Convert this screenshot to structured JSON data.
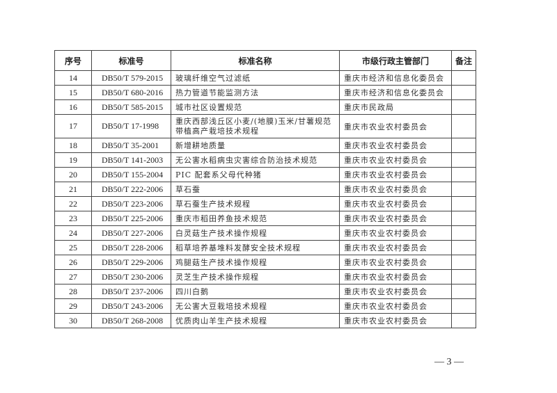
{
  "table": {
    "headers": [
      "序号",
      "标准号",
      "标准名称",
      "市级行政主管部门",
      "备注"
    ],
    "rows": [
      {
        "no": "14",
        "code": "DB50/T 579-2015",
        "name": "玻璃纤维空气过滤纸",
        "dept": "重庆市经济和信息化委员会",
        "note": ""
      },
      {
        "no": "15",
        "code": "DB50/T 680-2016",
        "name": "热力管道节能监测方法",
        "dept": "重庆市经济和信息化委员会",
        "note": ""
      },
      {
        "no": "16",
        "code": "DB50/T 585-2015",
        "name": "城市社区设置规范",
        "dept": "重庆市民政局",
        "note": ""
      },
      {
        "no": "17",
        "code": "DB50/T 17-1998",
        "name": "重庆西部浅丘区小麦/(地膜)玉米/甘薯规范带植高产栽培技术规程",
        "dept": "重庆市农业农村委员会",
        "note": ""
      },
      {
        "no": "18",
        "code": "DB50/T 35-2001",
        "name": "新增耕地质量",
        "dept": "重庆市农业农村委员会",
        "note": ""
      },
      {
        "no": "19",
        "code": "DB50/T 141-2003",
        "name": "无公害水稻病虫灾害综合防治技术规范",
        "dept": "重庆市农业农村委员会",
        "note": ""
      },
      {
        "no": "20",
        "code": "DB50/T 155-2004",
        "name": "PIC 配套系父母代种猪",
        "dept": "重庆市农业农村委员会",
        "note": ""
      },
      {
        "no": "21",
        "code": "DB50/T 222-2006",
        "name": "草石蚕",
        "dept": "重庆市农业农村委员会",
        "note": ""
      },
      {
        "no": "22",
        "code": "DB50/T 223-2006",
        "name": "草石蚕生产技术规程",
        "dept": "重庆市农业农村委员会",
        "note": ""
      },
      {
        "no": "23",
        "code": "DB50/T 225-2006",
        "name": "重庆市稻田养鱼技术规范",
        "dept": "重庆市农业农村委员会",
        "note": ""
      },
      {
        "no": "24",
        "code": "DB50/T 227-2006",
        "name": "白灵菇生产技术操作规程",
        "dept": "重庆市农业农村委员会",
        "note": ""
      },
      {
        "no": "25",
        "code": "DB50/T 228-2006",
        "name": "稻草培养基堆料发酵安全技术规程",
        "dept": "重庆市农业农村委员会",
        "note": ""
      },
      {
        "no": "26",
        "code": "DB50/T 229-2006",
        "name": "鸡腿菇生产技术操作规程",
        "dept": "重庆市农业农村委员会",
        "note": ""
      },
      {
        "no": "27",
        "code": "DB50/T 230-2006",
        "name": "灵芝生产技术操作规程",
        "dept": "重庆市农业农村委员会",
        "note": ""
      },
      {
        "no": "28",
        "code": "DB50/T 237-2006",
        "name": "四川白鹅",
        "dept": "重庆市农业农村委员会",
        "note": ""
      },
      {
        "no": "29",
        "code": "DB50/T 243-2006",
        "name": "无公害大豆栽培技术规程",
        "dept": "重庆市农业农村委员会",
        "note": ""
      },
      {
        "no": "30",
        "code": "DB50/T 268-2008",
        "name": "优质肉山羊生产技术规程",
        "dept": "重庆市农业农村委员会",
        "note": ""
      }
    ]
  },
  "page_number": "— 3 —"
}
